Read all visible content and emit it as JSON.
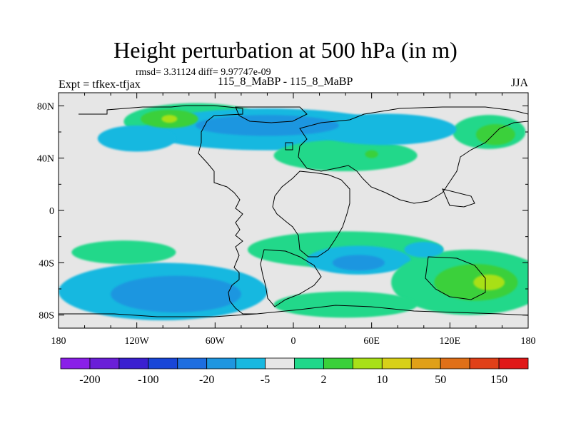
{
  "title": "Height perturbation at 500 hPa (in m)",
  "stats": "rmsd= 3.31124 diff= 9.97747e-09",
  "expt_label": "Expt = tfkex-tfjax",
  "subtitle": "115_8_MaBP - 115_8_MaBP",
  "season": "JJA",
  "chart_data": {
    "type": "heatmap",
    "x_ticks": [
      "180",
      "120W",
      "60W",
      "0",
      "60E",
      "120E",
      "180"
    ],
    "x_tick_values": [
      -180,
      -120,
      -60,
      0,
      60,
      120,
      180
    ],
    "y_ticks": [
      "80N",
      "40N",
      "0",
      "40S",
      "80S"
    ],
    "y_tick_values": [
      80,
      40,
      0,
      -40,
      -80
    ],
    "xlim": [
      -180,
      180
    ],
    "ylim": [
      -90,
      90
    ],
    "colorbar": {
      "labels": [
        "-200",
        "-100",
        "-20",
        "-5",
        "2",
        "10",
        "50",
        "150"
      ],
      "colors": [
        "#8a1fe8",
        "#6a1fd8",
        "#3a20d0",
        "#1846d8",
        "#1e6ee0",
        "#1e96e0",
        "#18b8e0",
        "#e6e6e6",
        "#20d88a",
        "#3ad03a",
        "#a8e018",
        "#d8d018",
        "#e0a018",
        "#e07018",
        "#e04018",
        "#e01818"
      ]
    },
    "regions": [
      {
        "level": 8,
        "lon": -75,
        "lat": 68,
        "rx": 55,
        "ry": 14
      },
      {
        "level": 9,
        "lon": -95,
        "lat": 70,
        "rx": 22,
        "ry": 7
      },
      {
        "level": 10,
        "lon": -95,
        "lat": 70,
        "rx": 6,
        "ry": 3
      },
      {
        "level": 6,
        "lon": -20,
        "lat": 62,
        "rx": 95,
        "ry": 16
      },
      {
        "level": 5,
        "lon": -20,
        "lat": 65,
        "rx": 55,
        "ry": 8
      },
      {
        "level": 6,
        "lon": -120,
        "lat": 55,
        "rx": 30,
        "ry": 10
      },
      {
        "level": 8,
        "lon": 40,
        "lat": 42,
        "rx": 55,
        "ry": 12
      },
      {
        "level": 9,
        "lon": 60,
        "lat": 43,
        "rx": 5,
        "ry": 3
      },
      {
        "level": 8,
        "lon": 150,
        "lat": 60,
        "rx": 28,
        "ry": 13
      },
      {
        "level": 9,
        "lon": 155,
        "lat": 58,
        "rx": 15,
        "ry": 8
      },
      {
        "level": 6,
        "lon": 70,
        "lat": 62,
        "rx": 55,
        "ry": 12
      },
      {
        "level": 8,
        "lon": 40,
        "lat": -30,
        "rx": 75,
        "ry": 14
      },
      {
        "level": 6,
        "lon": 50,
        "lat": -38,
        "rx": 40,
        "ry": 11
      },
      {
        "level": 5,
        "lon": 50,
        "lat": -40,
        "rx": 20,
        "ry": 6
      },
      {
        "level": 8,
        "lon": 135,
        "lat": -55,
        "rx": 60,
        "ry": 25
      },
      {
        "level": 9,
        "lon": 140,
        "lat": -55,
        "rx": 32,
        "ry": 14
      },
      {
        "level": 10,
        "lon": 150,
        "lat": -55,
        "rx": 12,
        "ry": 6
      },
      {
        "level": 6,
        "lon": -100,
        "lat": -62,
        "rx": 80,
        "ry": 22
      },
      {
        "level": 5,
        "lon": -90,
        "lat": -64,
        "rx": 50,
        "ry": 14
      },
      {
        "level": 8,
        "lon": -130,
        "lat": -32,
        "rx": 40,
        "ry": 9
      },
      {
        "level": 8,
        "lon": 40,
        "lat": -72,
        "rx": 55,
        "ry": 10
      },
      {
        "level": 6,
        "lon": 100,
        "lat": -30,
        "rx": 15,
        "ry": 6
      }
    ]
  }
}
